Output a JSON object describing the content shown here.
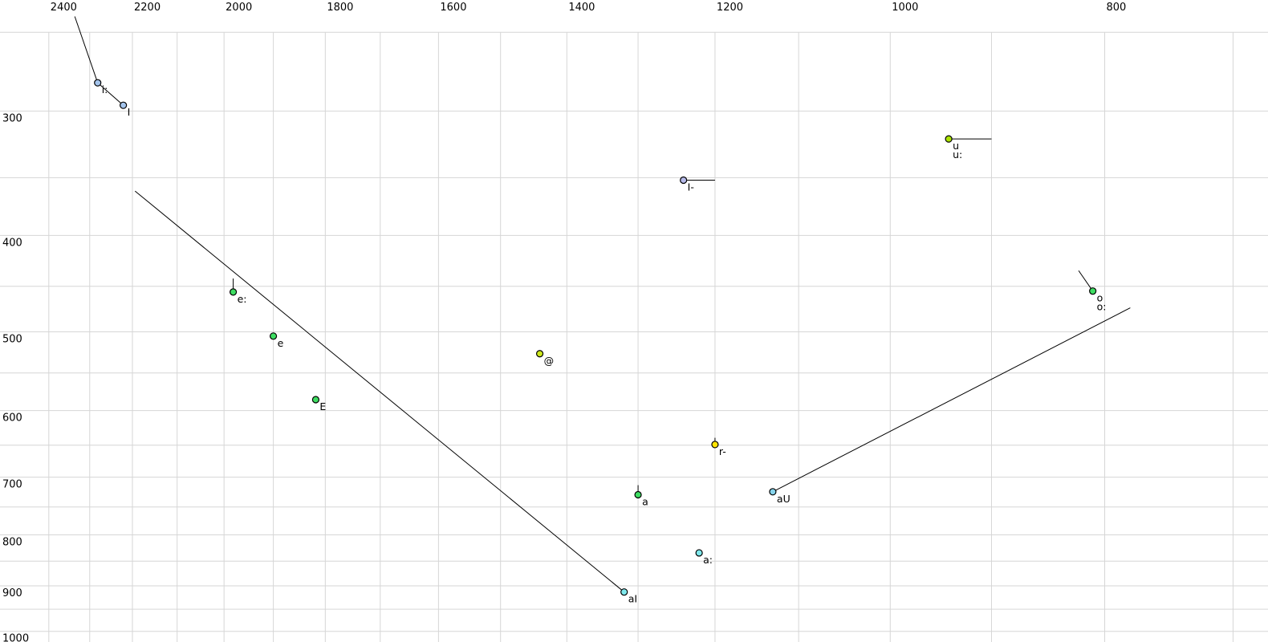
{
  "chart_data": {
    "type": "scatter",
    "title": "",
    "x_axis": {
      "scale": "log",
      "reversed": true,
      "tick_labels": [
        "2400",
        "2200",
        "2000",
        "1800",
        "1600",
        "1400",
        "1200",
        "1000",
        "800"
      ],
      "tick_values": [
        2400,
        2200,
        2000,
        1800,
        1600,
        1400,
        1200,
        1000,
        800
      ],
      "gridline_values": [
        2400,
        2300,
        2200,
        2100,
        2000,
        1900,
        1800,
        1700,
        1600,
        1500,
        1400,
        1300,
        1200,
        1100,
        1000,
        900,
        800,
        700
      ],
      "range": [
        2525,
        675
      ]
    },
    "y_axis": {
      "scale": "log",
      "tick_labels": [
        "300",
        "400",
        "500",
        "600",
        "700",
        "800",
        "900",
        "1000"
      ],
      "tick_values": [
        300,
        400,
        500,
        600,
        700,
        800,
        900,
        1000
      ],
      "gridline_values": [
        250,
        300,
        350,
        400,
        450,
        500,
        550,
        600,
        650,
        700,
        750,
        800,
        850,
        900,
        950,
        1000
      ],
      "range": [
        232,
        1025
      ]
    },
    "points": [
      {
        "labels": [
          "i:"
        ],
        "f2": 2281,
        "f1": 281,
        "fill": "#a4c4ec"
      },
      {
        "labels": [
          "I"
        ],
        "f2": 2221,
        "f1": 296,
        "fill": "#a4c4ec"
      },
      {
        "labels": [
          "u",
          "u:"
        ],
        "f2": 941,
        "f1": 320,
        "fill": "#abe402"
      },
      {
        "labels": [
          "I-"
        ],
        "f2": 1240,
        "f1": 352,
        "fill": "#b6baea"
      },
      {
        "labels": [
          "e:"
        ],
        "f2": 1981,
        "f1": 456,
        "fill": "#3edd62"
      },
      {
        "labels": [
          "e"
        ],
        "f2": 1900,
        "f1": 505,
        "fill": "#3edd62"
      },
      {
        "labels": [
          "@"
        ],
        "f2": 1440,
        "f1": 526,
        "fill": "#cde81c"
      },
      {
        "labels": [
          "E"
        ],
        "f2": 1818,
        "f1": 585,
        "fill": "#3edd62"
      },
      {
        "labels": [
          "r-"
        ],
        "f2": 1200,
        "f1": 649,
        "fill": "#ffe402"
      },
      {
        "labels": [
          "a"
        ],
        "f2": 1300,
        "f1": 729,
        "fill": "#3edd62"
      },
      {
        "labels": [
          "aU"
        ],
        "f2": 1130,
        "f1": 724,
        "fill": "#86d4ec"
      },
      {
        "labels": [
          "a:"
        ],
        "f2": 1220,
        "f1": 834,
        "fill": "#7fe8ec"
      },
      {
        "labels": [
          "aI"
        ],
        "f2": 1319,
        "f1": 913,
        "fill": "#7fe8ec"
      },
      {
        "labels": [
          "o",
          "o:"
        ],
        "f2": 810,
        "f1": 455,
        "fill": "#3edd62"
      }
    ],
    "lines": [
      {
        "name": "i-onglide",
        "from": {
          "f2": 2336,
          "f1": 241
        },
        "to": {
          "f2": 2281,
          "f1": 281
        }
      },
      {
        "name": "i-to-I",
        "from": {
          "f2": 2281,
          "f1": 281
        },
        "to": {
          "f2": 2221,
          "f1": 296
        }
      },
      {
        "name": "u-offglide",
        "from": {
          "f2": 941,
          "f1": 320
        },
        "to": {
          "f2": 900,
          "f1": 320
        }
      },
      {
        "name": "I-offglide",
        "from": {
          "f2": 1240,
          "f1": 352
        },
        "to": {
          "f2": 1200,
          "f1": 352
        }
      },
      {
        "name": "e-onglide",
        "from": {
          "f2": 1981,
          "f1": 442
        },
        "to": {
          "f2": 1981,
          "f1": 456
        }
      },
      {
        "name": "r-onglide",
        "from": {
          "f2": 1200,
          "f1": 639
        },
        "to": {
          "f2": 1200,
          "f1": 649
        }
      },
      {
        "name": "a-onglide",
        "from": {
          "f2": 1300,
          "f1": 713
        },
        "to": {
          "f2": 1300,
          "f1": 729
        }
      },
      {
        "name": "o-onglide",
        "from": {
          "f2": 822,
          "f1": 434
        },
        "to": {
          "f2": 810,
          "f1": 455
        }
      },
      {
        "name": "aI-trajectory",
        "from": {
          "f2": 2194,
          "f1": 361
        },
        "to": {
          "f2": 1319,
          "f1": 913
        }
      },
      {
        "name": "aU-trajectory",
        "from": {
          "f2": 1130,
          "f1": 724
        },
        "to": {
          "f2": 779,
          "f1": 473
        }
      }
    ],
    "colors": {
      "grid": "#d6d6d6",
      "line": "#000000",
      "point_stroke": "#000000",
      "text": "#000000",
      "background": "#ffffff"
    },
    "style": {
      "grid_on": true,
      "point_radius": 4,
      "tick_font_px": 13,
      "label_font_px": 12.5
    }
  }
}
